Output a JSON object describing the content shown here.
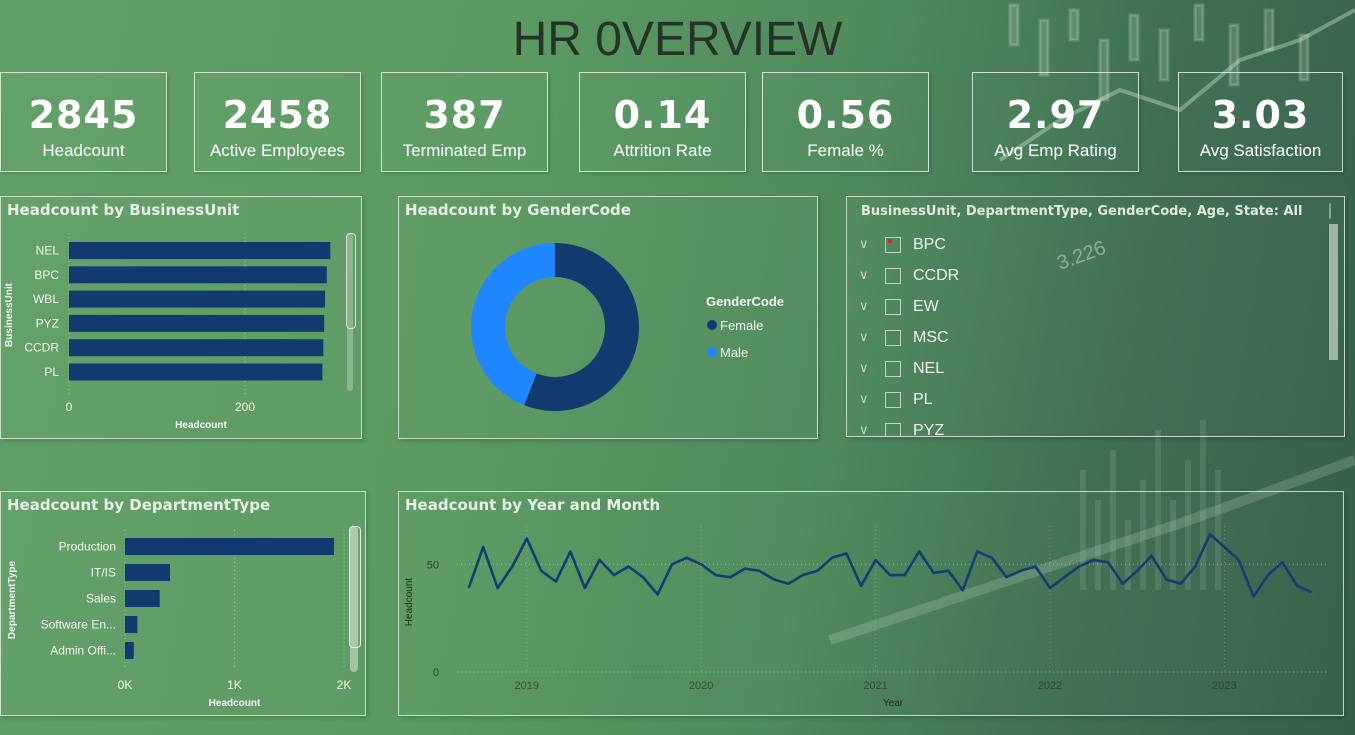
{
  "page_title": "HR 0VERVIEW",
  "kpis": [
    {
      "value": "2845",
      "label": "Headcount"
    },
    {
      "value": "2458",
      "label": "Active Employees"
    },
    {
      "value": "387",
      "label": "Terminated Emp"
    },
    {
      "value": "0.14",
      "label": "Attrition Rate"
    },
    {
      "value": "0.56",
      "label": "Female %"
    },
    {
      "value": "2.97",
      "label": "Avg Emp Rating"
    },
    {
      "value": "3.03",
      "label": "Avg Satisfaction"
    }
  ],
  "slicer": {
    "header": "BusinessUnit, DepartmentType, GenderCode, Age, State: All",
    "items": [
      "BPC",
      "CCDR",
      "EW",
      "MSC",
      "NEL",
      "PL",
      "PYZ"
    ],
    "checked": [
      "BPC"
    ]
  },
  "background_label": "3.226",
  "colors": {
    "dark_blue": "#123a6e",
    "light_blue": "#1f86ff",
    "line_blue": "#143c72"
  },
  "chart_data": [
    {
      "type": "bar",
      "orientation": "horizontal",
      "title": "Headcount by BusinessUnit",
      "xlabel": "Headcount",
      "ylabel": "BusinessUnit",
      "categories": [
        "NEL",
        "BPC",
        "WBL",
        "PYZ",
        "CCDR",
        "PL"
      ],
      "values": [
        297,
        293,
        291,
        290,
        289,
        288
      ],
      "xlim": [
        0,
        300
      ],
      "xticks": [
        "0",
        "200"
      ],
      "xtick_values": [
        0,
        200
      ]
    },
    {
      "type": "pie",
      "donut": true,
      "title": "Headcount by GenderCode",
      "legend_title": "GenderCode",
      "legend_position": "right",
      "labels": [
        "Female",
        "Male"
      ],
      "values": [
        0.56,
        0.44
      ]
    },
    {
      "type": "bar",
      "orientation": "horizontal",
      "title": "Headcount by DepartmentType",
      "xlabel": "Headcount",
      "ylabel": "DepartmentType",
      "categories": [
        "Production",
        "IT/IS",
        "Sales",
        "Software En...",
        "Admin Offi..."
      ],
      "values": [
        1909,
        411,
        317,
        113,
        80
      ],
      "xlim": [
        0,
        2000
      ],
      "xticks": [
        "0K",
        "1K",
        "2K"
      ],
      "xtick_values": [
        0,
        1000,
        2000
      ]
    },
    {
      "type": "line",
      "title": "Headcount by Year and Month",
      "xlabel": "Year",
      "ylabel": "Headcount",
      "ylim": [
        0,
        65
      ],
      "yticks": [
        "0",
        "50"
      ],
      "ytick_values": [
        0,
        50
      ],
      "xticks": [
        "2019",
        "2020",
        "2021",
        "2022",
        "2023"
      ],
      "xtick_values": [
        2019,
        2020,
        2021,
        2022,
        2023
      ],
      "xlim": [
        2018.6,
        2023.6
      ],
      "x": [
        2018.667,
        2018.75,
        2018.833,
        2018.917,
        2019.0,
        2019.083,
        2019.167,
        2019.25,
        2019.333,
        2019.417,
        2019.5,
        2019.583,
        2019.667,
        2019.75,
        2019.833,
        2019.917,
        2020.0,
        2020.083,
        2020.167,
        2020.25,
        2020.333,
        2020.417,
        2020.5,
        2020.583,
        2020.667,
        2020.75,
        2020.833,
        2020.917,
        2021.0,
        2021.083,
        2021.167,
        2021.25,
        2021.333,
        2021.417,
        2021.5,
        2021.583,
        2021.667,
        2021.75,
        2021.833,
        2021.917,
        2022.0,
        2022.083,
        2022.167,
        2022.25,
        2022.333,
        2022.417,
        2022.5,
        2022.583,
        2022.667,
        2022.75,
        2022.833,
        2022.917,
        2023.0,
        2023.083,
        2023.167,
        2023.25,
        2023.333,
        2023.417,
        2023.5
      ],
      "values": [
        39,
        58,
        39,
        49,
        62,
        47,
        42,
        56,
        39,
        52,
        45,
        49,
        44,
        36,
        50,
        53,
        50,
        45,
        44,
        48,
        47,
        43,
        41,
        45,
        47,
        53,
        55,
        40,
        52,
        45,
        45,
        56,
        46,
        47,
        38,
        56,
        53,
        44,
        47,
        49,
        39,
        44,
        49,
        52,
        51,
        41,
        47,
        54,
        43,
        41,
        49,
        64,
        58,
        52,
        35,
        45,
        51,
        40,
        37
      ]
    }
  ]
}
